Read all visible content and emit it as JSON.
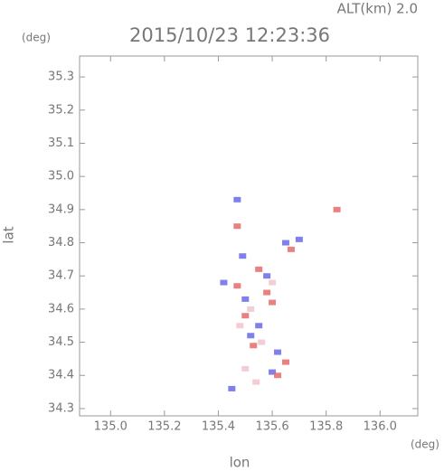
{
  "chart_data": {
    "type": "scatter",
    "title": "2015/10/23 12:23:36",
    "subtitle": "ALT(km) 2.0",
    "x_label": "lon",
    "y_label": "lat",
    "x_unit": "(deg)",
    "y_unit": "(deg)",
    "xlim": [
      134.885,
      136.14
    ],
    "ylim": [
      34.278,
      35.363
    ],
    "xticks": [
      {
        "value": 135.0,
        "label": "135.0"
      },
      {
        "value": 135.2,
        "label": "135.2"
      },
      {
        "value": 135.4,
        "label": "135.4"
      },
      {
        "value": 135.6,
        "label": "135.6"
      },
      {
        "value": 135.8,
        "label": "135.8"
      },
      {
        "value": 136.0,
        "label": "136.0"
      }
    ],
    "yticks": [
      {
        "value": 34.3,
        "label": "34.3"
      },
      {
        "value": 34.4,
        "label": "34.4"
      },
      {
        "value": 34.5,
        "label": "34.5"
      },
      {
        "value": 34.6,
        "label": "34.6"
      },
      {
        "value": 34.7,
        "label": "34.7"
      },
      {
        "value": 34.8,
        "label": "34.8"
      },
      {
        "value": 34.9,
        "label": "34.9"
      },
      {
        "value": 35.0,
        "label": "35.0"
      },
      {
        "value": 35.1,
        "label": "35.1"
      },
      {
        "value": 35.2,
        "label": "35.2"
      },
      {
        "value": 35.3,
        "label": "35.3"
      }
    ],
    "series": [
      {
        "color": "#6a6ae8",
        "x": [
          135.5,
          135.45,
          135.62,
          135.55,
          135.47,
          135.65,
          135.7,
          135.58,
          135.42,
          135.52,
          135.6,
          135.49
        ],
        "values": [
          34.63,
          34.36,
          34.47,
          34.55,
          34.93,
          34.8,
          34.81,
          34.7,
          34.68,
          34.52,
          34.41,
          34.76
        ]
      },
      {
        "color": "#e86a6a",
        "x": [
          135.47,
          135.58,
          135.62,
          135.53,
          135.67,
          135.84,
          135.6,
          135.47,
          135.65,
          135.55,
          135.5
        ],
        "values": [
          34.67,
          34.65,
          34.4,
          34.49,
          34.78,
          34.9,
          34.62,
          34.85,
          34.44,
          34.72,
          34.58
        ]
      },
      {
        "color": "#f2c4cc",
        "x": [
          135.52,
          135.56,
          135.5,
          135.6,
          135.54,
          135.48
        ],
        "values": [
          34.6,
          34.5,
          34.42,
          34.68,
          34.38,
          34.55
        ]
      }
    ]
  }
}
